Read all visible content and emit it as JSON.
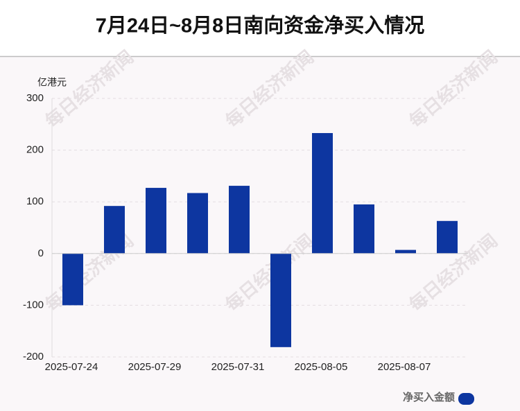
{
  "chart_data": {
    "type": "bar",
    "title": "7月24日~8月8日南向资金净买入情况",
    "y_axis_label": "亿港元",
    "watermark": "每日经济新闻",
    "categories": [
      "2025-07-24",
      null,
      "2025-07-29",
      null,
      "2025-07-31",
      null,
      "2025-08-05",
      null,
      "2025-08-07",
      null
    ],
    "series": [
      {
        "name": "净买入金额",
        "color": "#0d36a0",
        "values": [
          -100,
          92,
          127,
          117,
          131,
          -181,
          233,
          95,
          7,
          63
        ]
      }
    ],
    "ylim": [
      -200,
      300
    ],
    "yticks": [
      -200,
      -100,
      0,
      100,
      200,
      300
    ],
    "grid": true,
    "legend": "bottom-right"
  }
}
